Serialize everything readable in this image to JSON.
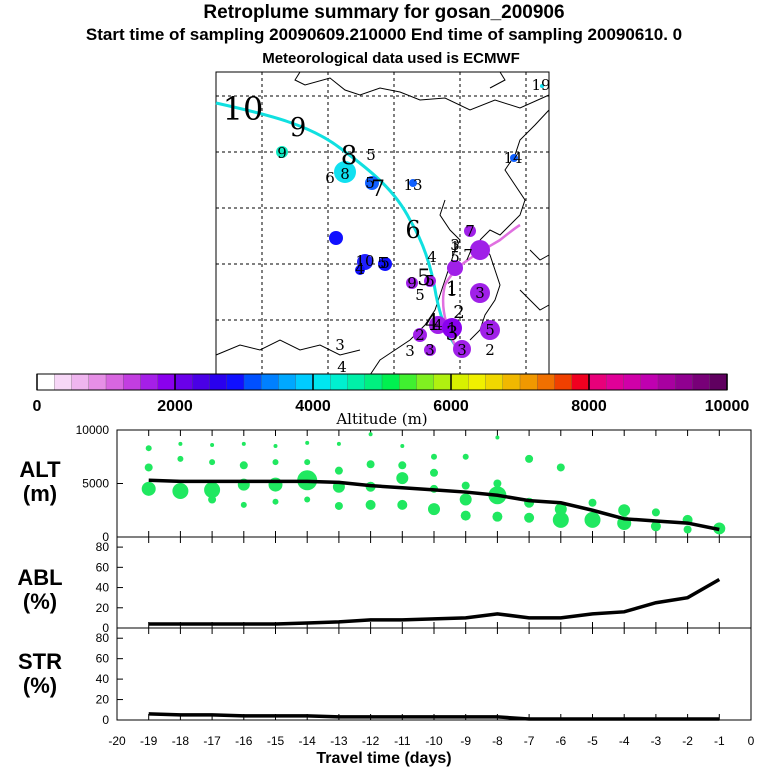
{
  "header": {
    "title": "Retroplume summary for gosan_200906",
    "subtitle": "Start time of sampling 20090609.210000      End time of sampling 20090610.    0",
    "met_line": "Meteorological data used is ECMWF"
  },
  "map": {
    "trajectory_labels": [
      "10",
      "9",
      "8",
      "7",
      "6",
      "5",
      "4",
      "3",
      "2",
      "1"
    ],
    "cluster_labels": [
      "19",
      "14",
      "13",
      "9",
      "8",
      "6",
      "5",
      "5",
      "7",
      "1",
      "1",
      "10",
      "5",
      "4",
      "9",
      "5",
      "7",
      "3",
      "4",
      "1",
      "5",
      "2",
      "3",
      "3",
      "3",
      "2",
      "3",
      "4",
      "5",
      "4",
      "3",
      "5",
      "5"
    ]
  },
  "colorbar": {
    "label": "Altitude (m)",
    "ticks": [
      "0",
      "2000",
      "4000",
      "6000",
      "8000",
      "10000"
    ],
    "colors": [
      "#ffffff",
      "#f7d7f7",
      "#efb5ef",
      "#e68fe6",
      "#d866e0",
      "#c23ee0",
      "#a51fe8",
      "#8a00ee",
      "#6a00ea",
      "#4a00e6",
      "#2a00ee",
      "#1010ff",
      "#0050ff",
      "#0080ff",
      "#00a8ff",
      "#00ccff",
      "#00e6f0",
      "#00f0d0",
      "#00f0a8",
      "#00f080",
      "#00f050",
      "#40f030",
      "#80f020",
      "#b0f010",
      "#d8f000",
      "#f0f000",
      "#f0d800",
      "#f0b800",
      "#f09800",
      "#f07000",
      "#f04000",
      "#f00020",
      "#e8007a",
      "#e00098",
      "#d000a8",
      "#c000b0",
      "#a800a0",
      "#900090",
      "#780078",
      "#600060"
    ]
  },
  "panels": {
    "alt": {
      "label_line1": "ALT",
      "label_line2": "(m)"
    },
    "abl": {
      "label_line1": "ABL",
      "label_line2": "(%)"
    },
    "str": {
      "label_line1": "STR",
      "label_line2": "(%)"
    },
    "x_label": "Travel time (days)"
  },
  "chart_data": [
    {
      "type": "line",
      "title": "ALT (m)",
      "ylabel": "ALT (m)",
      "xlabel": "Travel time (days)",
      "ylim": [
        0,
        10000
      ],
      "yticks": [
        0,
        5000,
        10000
      ],
      "xlim": [
        -20,
        0
      ],
      "x_ticks": [
        -20,
        -19,
        -18,
        -17,
        -16,
        -15,
        -14,
        -13,
        -12,
        -11,
        -10,
        -9,
        -8,
        -7,
        -6,
        -5,
        -4,
        -3,
        -2,
        -1,
        0
      ],
      "x": [
        -19,
        -18,
        -17,
        -16,
        -15,
        -14,
        -13,
        -12,
        -11,
        -10,
        -9,
        -8,
        -7,
        -6,
        -5,
        -4,
        -3,
        -2,
        -1
      ],
      "values": [
        5300,
        5200,
        5200,
        5200,
        5200,
        5200,
        5100,
        4800,
        4600,
        4400,
        4200,
        3900,
        3400,
        3200,
        2500,
        1700,
        1500,
        1300,
        700
      ],
      "clusters": [
        {
          "x": -19,
          "y": 8300,
          "s": 3
        },
        {
          "x": -19,
          "y": 6500,
          "s": 4
        },
        {
          "x": -19,
          "y": 4500,
          "s": 7
        },
        {
          "x": -18,
          "y": 8700,
          "s": 2
        },
        {
          "x": -18,
          "y": 7300,
          "s": 3
        },
        {
          "x": -18,
          "y": 4300,
          "s": 8
        },
        {
          "x": -17,
          "y": 8600,
          "s": 2
        },
        {
          "x": -17,
          "y": 7000,
          "s": 3
        },
        {
          "x": -17,
          "y": 4400,
          "s": 8
        },
        {
          "x": -17,
          "y": 3500,
          "s": 4
        },
        {
          "x": -16,
          "y": 8700,
          "s": 2
        },
        {
          "x": -16,
          "y": 6700,
          "s": 4
        },
        {
          "x": -16,
          "y": 4900,
          "s": 6
        },
        {
          "x": -16,
          "y": 3000,
          "s": 3
        },
        {
          "x": -15,
          "y": 8500,
          "s": 2
        },
        {
          "x": -15,
          "y": 7000,
          "s": 3
        },
        {
          "x": -15,
          "y": 4900,
          "s": 7
        },
        {
          "x": -15,
          "y": 3300,
          "s": 3
        },
        {
          "x": -14,
          "y": 8800,
          "s": 2
        },
        {
          "x": -14,
          "y": 7000,
          "s": 3
        },
        {
          "x": -14,
          "y": 5300,
          "s": 10
        },
        {
          "x": -14,
          "y": 3500,
          "s": 3
        },
        {
          "x": -13,
          "y": 8700,
          "s": 2
        },
        {
          "x": -13,
          "y": 6200,
          "s": 4
        },
        {
          "x": -13,
          "y": 4700,
          "s": 6
        },
        {
          "x": -13,
          "y": 2900,
          "s": 4
        },
        {
          "x": -12,
          "y": 9600,
          "s": 2
        },
        {
          "x": -12,
          "y": 6800,
          "s": 4
        },
        {
          "x": -12,
          "y": 4700,
          "s": 5
        },
        {
          "x": -12,
          "y": 3000,
          "s": 5
        },
        {
          "x": -11,
          "y": 8500,
          "s": 2
        },
        {
          "x": -11,
          "y": 6700,
          "s": 4
        },
        {
          "x": -11,
          "y": 5500,
          "s": 6
        },
        {
          "x": -11,
          "y": 3000,
          "s": 5
        },
        {
          "x": -10,
          "y": 7500,
          "s": 3
        },
        {
          "x": -10,
          "y": 6000,
          "s": 4
        },
        {
          "x": -10,
          "y": 4500,
          "s": 4
        },
        {
          "x": -10,
          "y": 2600,
          "s": 6
        },
        {
          "x": -9,
          "y": 7500,
          "s": 3
        },
        {
          "x": -9,
          "y": 4800,
          "s": 4
        },
        {
          "x": -9,
          "y": 3500,
          "s": 6
        },
        {
          "x": -9,
          "y": 2000,
          "s": 5
        },
        {
          "x": -8,
          "y": 9300,
          "s": 2
        },
        {
          "x": -8,
          "y": 5000,
          "s": 4
        },
        {
          "x": -8,
          "y": 3900,
          "s": 9
        },
        {
          "x": -8,
          "y": 1900,
          "s": 5
        },
        {
          "x": -7,
          "y": 7300,
          "s": 4
        },
        {
          "x": -7,
          "y": 3200,
          "s": 5
        },
        {
          "x": -7,
          "y": 1800,
          "s": 5
        },
        {
          "x": -6,
          "y": 6500,
          "s": 4
        },
        {
          "x": -6,
          "y": 2600,
          "s": 6
        },
        {
          "x": -6,
          "y": 1600,
          "s": 8
        },
        {
          "x": -5,
          "y": 3200,
          "s": 4
        },
        {
          "x": -5,
          "y": 1600,
          "s": 8
        },
        {
          "x": -4,
          "y": 2500,
          "s": 6
        },
        {
          "x": -4,
          "y": 1300,
          "s": 7
        },
        {
          "x": -3,
          "y": 2300,
          "s": 4
        },
        {
          "x": -3,
          "y": 1000,
          "s": 5
        },
        {
          "x": -2,
          "y": 1600,
          "s": 5
        },
        {
          "x": -2,
          "y": 700,
          "s": 4
        },
        {
          "x": -1,
          "y": 800,
          "s": 6
        }
      ]
    },
    {
      "type": "line",
      "title": "ABL (%)",
      "ylabel": "ABL (%)",
      "ylim": [
        0,
        90
      ],
      "yticks": [
        0,
        20,
        40,
        60,
        80
      ],
      "xlim": [
        -20,
        0
      ],
      "x": [
        -19,
        -18,
        -17,
        -16,
        -15,
        -14,
        -13,
        -12,
        -11,
        -10,
        -9,
        -8,
        -7,
        -6,
        -5,
        -4,
        -3,
        -2,
        -1
      ],
      "values": [
        4,
        4,
        4,
        4,
        4,
        5,
        6,
        8,
        8,
        9,
        10,
        14,
        10,
        10,
        14,
        16,
        25,
        30,
        48
      ]
    },
    {
      "type": "line",
      "title": "STR (%)",
      "ylabel": "STR (%)",
      "ylim": [
        0,
        90
      ],
      "yticks": [
        0,
        20,
        40,
        60,
        80
      ],
      "xlim": [
        -20,
        0
      ],
      "x": [
        -19,
        -18,
        -17,
        -16,
        -15,
        -14,
        -13,
        -12,
        -11,
        -10,
        -9,
        -8,
        -7,
        -6,
        -5,
        -4,
        -3,
        -2,
        -1
      ],
      "values": [
        6,
        5,
        5,
        4,
        4,
        4,
        3,
        3,
        3,
        3,
        3,
        3,
        1,
        1,
        1,
        1,
        1,
        1,
        1
      ]
    }
  ]
}
